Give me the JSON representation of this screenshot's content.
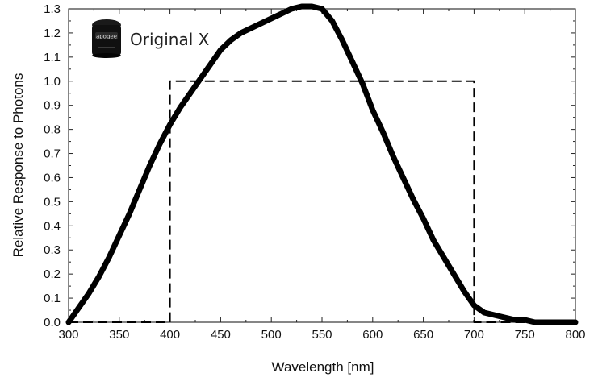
{
  "chart_data": {
    "type": "line",
    "xlabel": "Wavelength [nm]",
    "ylabel": "Relative Response to Photons",
    "xlim": [
      300,
      800
    ],
    "ylim": [
      0.0,
      1.3
    ],
    "xticks": [
      "300",
      "350",
      "400",
      "450",
      "500",
      "550",
      "600",
      "650",
      "700",
      "750",
      "800"
    ],
    "yticks": [
      "0.0",
      "0.1",
      "0.2",
      "0.3",
      "0.4",
      "0.5",
      "0.6",
      "0.7",
      "0.8",
      "0.9",
      "1.0",
      "1.1",
      "1.2",
      "1.3"
    ],
    "grid": false,
    "legend_position": "top-left",
    "series": [
      {
        "name": "Original X",
        "style": "solid",
        "color": "#000000",
        "x": [
          300,
          310,
          320,
          330,
          340,
          350,
          360,
          370,
          380,
          390,
          400,
          410,
          420,
          430,
          440,
          450,
          460,
          470,
          480,
          490,
          500,
          510,
          520,
          530,
          540,
          550,
          560,
          570,
          580,
          590,
          600,
          610,
          620,
          630,
          640,
          650,
          660,
          670,
          680,
          690,
          700,
          710,
          720,
          730,
          740,
          750,
          760,
          770,
          780,
          790,
          800
        ],
        "y": [
          0.0,
          0.06,
          0.12,
          0.19,
          0.27,
          0.36,
          0.45,
          0.55,
          0.65,
          0.74,
          0.82,
          0.89,
          0.95,
          1.01,
          1.07,
          1.13,
          1.17,
          1.2,
          1.22,
          1.24,
          1.26,
          1.28,
          1.3,
          1.31,
          1.31,
          1.3,
          1.25,
          1.17,
          1.08,
          0.99,
          0.88,
          0.79,
          0.69,
          0.6,
          0.51,
          0.43,
          0.34,
          0.27,
          0.2,
          0.13,
          0.07,
          0.04,
          0.03,
          0.02,
          0.01,
          0.01,
          0.0,
          0.0,
          0.0,
          0.0,
          0.0
        ]
      },
      {
        "style": "dashed",
        "color": "#000000",
        "x": [
          300,
          400,
          400,
          700,
          700,
          800
        ],
        "y": [
          0.0,
          0.0,
          1.0,
          1.0,
          0.0,
          0.0
        ]
      }
    ]
  },
  "legend": {
    "label": "Original X",
    "icon": "apogee-sensor-icon",
    "icon_text": "apogee"
  }
}
